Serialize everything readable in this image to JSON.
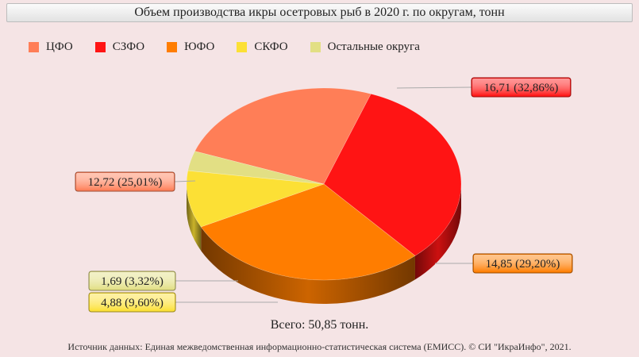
{
  "chart_data": {
    "type": "pie",
    "title": "Объем производства икры осетровых рыб в 2020 г. по округам, тонн",
    "categories": [
      "ЦФО",
      "СЗФО",
      "ЮФО",
      "СКФО",
      "Остальные округа"
    ],
    "values": [
      12.72,
      16.71,
      14.85,
      4.88,
      1.69
    ],
    "percents": [
      25.01,
      32.86,
      29.2,
      9.6,
      3.32
    ],
    "data_labels": [
      "12,72 (25,01%)",
      "16,71 (32,86%)",
      "14,85 (29,20%)",
      "4,88 (9,60%)",
      "1,69 (3,32%)"
    ],
    "colors": [
      "#ff7e57",
      "#ff1414",
      "#ff7d00",
      "#fce035",
      "#e2df84"
    ],
    "legend_position": "top-left",
    "total_text": "Всего: 50,85 тонн."
  },
  "source": "Источник данных: Единая межведомственная информационно-статистическая система (ЕМИСС). © СИ \"ИкраИнфо\", 2021."
}
